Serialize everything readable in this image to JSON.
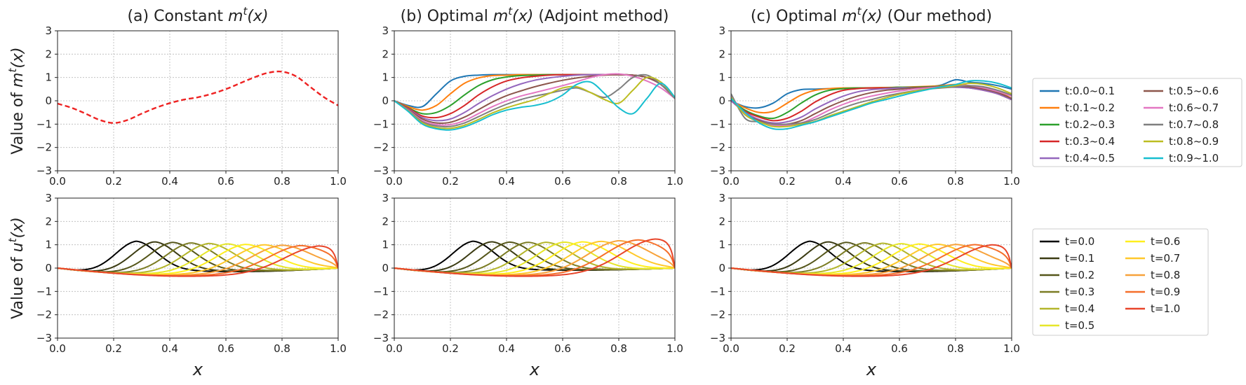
{
  "figure": {
    "titles": [
      "(a) Constant ",
      "(b) Optimal ",
      "(c) Optimal "
    ],
    "title_math": "m",
    "title_sup": "t",
    "title_arg": "(x)",
    "title_suffix": [
      "",
      " (Adjoint method)",
      " (Our method)"
    ],
    "ylabel_top_prefix": "Value of ",
    "ylabel_top_var": "m",
    "ylabel_bottom_prefix": "Value of ",
    "ylabel_bottom_var": "u",
    "ylabel_sup": "t",
    "ylabel_arg": "(x)",
    "xlabel": "x",
    "xticks": [
      "0.0",
      "0.2",
      "0.4",
      "0.6",
      "0.8",
      "1.0"
    ],
    "yticks": [
      "3",
      "2",
      "1",
      "0",
      "−1",
      "−2",
      "−3"
    ]
  },
  "chart_data": [
    {
      "id": "a-top",
      "type": "line",
      "title": "(a) Constant m^t(x)",
      "xlabel": "",
      "ylabel": "Value of m^t(x)",
      "xlim": [
        0,
        1
      ],
      "ylim": [
        -3,
        3
      ],
      "grid": true,
      "series": [
        {
          "name": "m(x)",
          "color": "#ee2222",
          "dashed": true,
          "x": [
            0,
            0.05,
            0.1,
            0.15,
            0.2,
            0.25,
            0.3,
            0.35,
            0.4,
            0.45,
            0.5,
            0.55,
            0.6,
            0.65,
            0.7,
            0.75,
            0.8,
            0.85,
            0.9,
            0.95,
            1.0
          ],
          "y": [
            -0.12,
            -0.3,
            -0.55,
            -0.82,
            -0.95,
            -0.82,
            -0.55,
            -0.3,
            -0.1,
            0.05,
            0.15,
            0.3,
            0.5,
            0.75,
            1.0,
            1.2,
            1.25,
            1.05,
            0.6,
            0.15,
            -0.2
          ]
        }
      ]
    },
    {
      "id": "b-top",
      "type": "line",
      "title": "(b) Optimal m^t(x) (Adjoint method)",
      "xlabel": "",
      "ylabel": "",
      "xlim": [
        0,
        1
      ],
      "ylim": [
        -3,
        3
      ],
      "grid": true,
      "x": [
        0,
        0.05,
        0.1,
        0.15,
        0.2,
        0.25,
        0.3,
        0.35,
        0.4,
        0.45,
        0.5,
        0.55,
        0.6,
        0.65,
        0.7,
        0.75,
        0.8,
        0.85,
        0.9,
        0.95,
        1.0
      ],
      "series": [
        {
          "name": "t:0.0~0.1",
          "color": "#1f77b4",
          "y": [
            0,
            -0.2,
            -0.25,
            0.3,
            0.85,
            1.05,
            1.1,
            1.12,
            1.12,
            1.12,
            1.12,
            1.12,
            1.12,
            1.12,
            1.12,
            1.12,
            1.12,
            1.1,
            1.0,
            0.7,
            0.1
          ]
        },
        {
          "name": "t:0.1~0.2",
          "color": "#ff7f0e",
          "y": [
            0,
            -0.25,
            -0.4,
            -0.2,
            0.3,
            0.75,
            0.98,
            1.08,
            1.1,
            1.12,
            1.12,
            1.12,
            1.12,
            1.12,
            1.12,
            1.12,
            1.12,
            1.1,
            1.0,
            0.7,
            0.1
          ]
        },
        {
          "name": "t:0.2~0.3",
          "color": "#2ca02c",
          "y": [
            0,
            -0.3,
            -0.55,
            -0.5,
            -0.2,
            0.25,
            0.65,
            0.9,
            1.02,
            1.08,
            1.1,
            1.12,
            1.12,
            1.12,
            1.12,
            1.12,
            1.12,
            1.1,
            1.0,
            0.7,
            0.1
          ]
        },
        {
          "name": "t:0.3~0.4",
          "color": "#d62728",
          "y": [
            0,
            -0.32,
            -0.65,
            -0.72,
            -0.55,
            -0.2,
            0.25,
            0.6,
            0.85,
            0.98,
            1.05,
            1.1,
            1.12,
            1.12,
            1.12,
            1.12,
            1.12,
            1.1,
            1.0,
            0.7,
            0.1
          ]
        },
        {
          "name": "t:0.4~0.5",
          "color": "#9467bd",
          "y": [
            0,
            -0.35,
            -0.72,
            -0.85,
            -0.78,
            -0.5,
            -0.12,
            0.22,
            0.5,
            0.72,
            0.88,
            0.98,
            1.05,
            1.1,
            1.12,
            1.12,
            1.12,
            1.1,
            1.0,
            0.7,
            0.1
          ]
        },
        {
          "name": "t:0.5~0.6",
          "color": "#8c564b",
          "y": [
            0,
            -0.37,
            -0.78,
            -0.95,
            -0.92,
            -0.7,
            -0.38,
            -0.05,
            0.22,
            0.42,
            0.6,
            0.75,
            0.88,
            0.98,
            1.05,
            1.1,
            1.12,
            1.1,
            1.0,
            0.7,
            0.1
          ]
        },
        {
          "name": "t:0.6~0.7",
          "color": "#e377c2",
          "y": [
            0,
            -0.4,
            -0.85,
            -1.02,
            -1.02,
            -0.85,
            -0.55,
            -0.25,
            0.0,
            0.2,
            0.35,
            0.5,
            0.65,
            0.82,
            1.0,
            1.12,
            1.15,
            1.05,
            0.85,
            0.55,
            0.1
          ]
        },
        {
          "name": "t:0.7~0.8",
          "color": "#7f7f7f",
          "y": [
            0,
            -0.42,
            -0.9,
            -1.08,
            -1.1,
            -0.95,
            -0.68,
            -0.4,
            -0.15,
            0.05,
            0.2,
            0.32,
            0.45,
            0.55,
            0.35,
            0.15,
            0.5,
            1.0,
            1.1,
            0.7,
            0.1
          ]
        },
        {
          "name": "t:0.8~0.9",
          "color": "#bcbd22",
          "y": [
            0,
            -0.44,
            -0.95,
            -1.15,
            -1.18,
            -1.05,
            -0.8,
            -0.52,
            -0.3,
            -0.12,
            0.05,
            0.3,
            0.55,
            0.6,
            0.35,
            0.05,
            -0.1,
            0.45,
            1.0,
            0.8,
            0.15
          ]
        },
        {
          "name": "t:0.9~1.0",
          "color": "#17becf",
          "y": [
            0,
            -0.46,
            -1.0,
            -1.2,
            -1.25,
            -1.12,
            -0.88,
            -0.6,
            -0.4,
            -0.28,
            -0.2,
            -0.05,
            0.25,
            0.7,
            0.8,
            0.3,
            -0.3,
            -0.55,
            0.1,
            0.75,
            0.15
          ]
        }
      ]
    },
    {
      "id": "c-top",
      "type": "line",
      "title": "(c) Optimal m^t(x) (Our method)",
      "xlabel": "",
      "ylabel": "",
      "xlim": [
        0,
        1
      ],
      "ylim": [
        -3,
        3
      ],
      "grid": true,
      "x": [
        0,
        0.05,
        0.1,
        0.15,
        0.2,
        0.25,
        0.3,
        0.35,
        0.4,
        0.45,
        0.5,
        0.55,
        0.6,
        0.65,
        0.7,
        0.75,
        0.8,
        0.85,
        0.9,
        0.95,
        1.0
      ],
      "series": [
        {
          "name": "t:0.0~0.1",
          "color": "#1f77b4",
          "y": [
            0,
            -0.25,
            -0.3,
            -0.1,
            0.3,
            0.48,
            0.5,
            0.52,
            0.53,
            0.55,
            0.55,
            0.55,
            0.58,
            0.58,
            0.6,
            0.68,
            0.9,
            0.8,
            0.75,
            0.65,
            0.5
          ]
        },
        {
          "name": "t:0.1~0.2",
          "color": "#ff7f0e",
          "y": [
            0,
            -0.3,
            -0.5,
            -0.45,
            -0.1,
            0.25,
            0.45,
            0.52,
            0.55,
            0.55,
            0.56,
            0.57,
            0.58,
            0.6,
            0.62,
            0.65,
            0.7,
            0.65,
            0.55,
            0.4,
            0.1
          ]
        },
        {
          "name": "t:0.2~0.3",
          "color": "#2ca02c",
          "y": [
            0,
            -0.4,
            -0.65,
            -0.75,
            -0.5,
            -0.1,
            0.25,
            0.45,
            0.52,
            0.55,
            0.55,
            0.56,
            0.58,
            0.58,
            0.6,
            0.62,
            0.65,
            0.6,
            0.5,
            0.3,
            0.05
          ]
        },
        {
          "name": "t:0.3~0.4",
          "color": "#d62728",
          "y": [
            0,
            -0.45,
            -0.7,
            -0.85,
            -0.75,
            -0.45,
            -0.05,
            0.25,
            0.45,
            0.52,
            0.55,
            0.55,
            0.55,
            0.56,
            0.58,
            0.6,
            0.6,
            0.55,
            0.45,
            0.3,
            0.05
          ]
        },
        {
          "name": "t:0.4~0.5",
          "color": "#9467bd",
          "y": [
            0,
            -0.5,
            -0.8,
            -0.95,
            -0.9,
            -0.7,
            -0.35,
            -0.05,
            0.2,
            0.38,
            0.48,
            0.52,
            0.55,
            0.56,
            0.57,
            0.58,
            0.58,
            0.55,
            0.45,
            0.3,
            0.05
          ]
        },
        {
          "name": "t:0.5~0.6",
          "color": "#8c564b",
          "y": [
            0.1,
            -0.55,
            -0.85,
            -1.0,
            -1.0,
            -0.85,
            -0.55,
            -0.25,
            0.0,
            0.2,
            0.35,
            0.45,
            0.5,
            0.55,
            0.58,
            0.6,
            0.62,
            0.6,
            0.5,
            0.35,
            0.1
          ]
        },
        {
          "name": "t:0.6~0.7",
          "color": "#e377c2",
          "y": [
            0.2,
            -0.55,
            -0.9,
            -1.05,
            -1.05,
            -0.95,
            -0.7,
            -0.4,
            -0.15,
            0.05,
            0.2,
            0.32,
            0.42,
            0.5,
            0.55,
            0.6,
            0.65,
            0.65,
            0.55,
            0.4,
            0.2
          ]
        },
        {
          "name": "t:0.7~0.8",
          "color": "#7f7f7f",
          "y": [
            0.3,
            -0.75,
            -0.9,
            -1.0,
            -1.0,
            -0.95,
            -0.8,
            -0.55,
            -0.3,
            -0.1,
            0.05,
            0.2,
            0.32,
            0.42,
            0.5,
            0.55,
            0.6,
            0.65,
            0.6,
            0.45,
            0.25
          ]
        },
        {
          "name": "t:0.8~0.9",
          "color": "#bcbd22",
          "y": [
            0.15,
            -0.6,
            -0.9,
            -1.1,
            -1.1,
            -1.0,
            -0.88,
            -0.65,
            -0.45,
            -0.25,
            -0.05,
            0.12,
            0.28,
            0.4,
            0.5,
            0.58,
            0.65,
            0.75,
            0.7,
            0.55,
            0.3
          ]
        },
        {
          "name": "t:0.9~1.0",
          "color": "#17becf",
          "y": [
            0.1,
            -0.5,
            -0.95,
            -1.2,
            -1.2,
            -1.05,
            -0.9,
            -0.7,
            -0.5,
            -0.3,
            -0.1,
            0.05,
            0.2,
            0.35,
            0.48,
            0.6,
            0.7,
            0.85,
            0.85,
            0.75,
            0.55
          ]
        }
      ]
    },
    {
      "id": "a-bottom",
      "type": "line",
      "title": "",
      "xlabel": "x",
      "ylabel": "Value of u^t(x)",
      "xlim": [
        0,
        1
      ],
      "ylim": [
        -3,
        3
      ],
      "grid": true,
      "model": {
        "peak0": 1.15,
        "center0": 0.28,
        "width": 0.075,
        "endpeak": 0.95,
        "tail": "constant"
      },
      "series": [
        {
          "name": "t=0.0",
          "color": "#000000",
          "t": 0.0
        },
        {
          "name": "t=0.1",
          "color": "#3b3b12",
          "t": 0.1
        },
        {
          "name": "t=0.2",
          "color": "#55561a",
          "t": 0.2
        },
        {
          "name": "t=0.3",
          "color": "#7b7c23",
          "t": 0.3
        },
        {
          "name": "t=0.4",
          "color": "#b3b52a",
          "t": 0.4
        },
        {
          "name": "t=0.5",
          "color": "#e6e62a",
          "t": 0.5
        },
        {
          "name": "t=0.6",
          "color": "#ffef1e",
          "t": 0.6
        },
        {
          "name": "t=0.7",
          "color": "#ffc82a",
          "t": 0.7
        },
        {
          "name": "t=0.8",
          "color": "#f7a23a",
          "t": 0.8
        },
        {
          "name": "t=0.9",
          "color": "#f56f2a",
          "t": 0.9
        },
        {
          "name": "t=1.0",
          "color": "#e8452a",
          "t": 1.0
        }
      ]
    },
    {
      "id": "b-bottom",
      "type": "line",
      "title": "",
      "xlabel": "x",
      "ylabel": "",
      "xlim": [
        0,
        1
      ],
      "ylim": [
        -3,
        3
      ],
      "grid": true,
      "model": {
        "peak0": 1.15,
        "center0": 0.28,
        "width": 0.075,
        "endpeak": 1.25,
        "tail": "adjoint"
      },
      "series": [
        {
          "name": "t=0.0",
          "color": "#000000",
          "t": 0.0
        },
        {
          "name": "t=0.1",
          "color": "#3b3b12",
          "t": 0.1
        },
        {
          "name": "t=0.2",
          "color": "#55561a",
          "t": 0.2
        },
        {
          "name": "t=0.3",
          "color": "#7b7c23",
          "t": 0.3
        },
        {
          "name": "t=0.4",
          "color": "#b3b52a",
          "t": 0.4
        },
        {
          "name": "t=0.5",
          "color": "#e6e62a",
          "t": 0.5
        },
        {
          "name": "t=0.6",
          "color": "#ffef1e",
          "t": 0.6
        },
        {
          "name": "t=0.7",
          "color": "#ffc82a",
          "t": 0.7
        },
        {
          "name": "t=0.8",
          "color": "#f7a23a",
          "t": 0.8
        },
        {
          "name": "t=0.9",
          "color": "#f56f2a",
          "t": 0.9
        },
        {
          "name": "t=1.0",
          "color": "#e8452a",
          "t": 1.0
        }
      ]
    },
    {
      "id": "c-bottom",
      "type": "line",
      "title": "",
      "xlabel": "x",
      "ylabel": "",
      "xlim": [
        0,
        1
      ],
      "ylim": [
        -3,
        3
      ],
      "grid": true,
      "model": {
        "peak0": 1.15,
        "center0": 0.28,
        "width": 0.075,
        "endpeak": 1.0,
        "tail": "ours"
      },
      "series": [
        {
          "name": "t=0.0",
          "color": "#000000",
          "t": 0.0
        },
        {
          "name": "t=0.1",
          "color": "#3b3b12",
          "t": 0.1
        },
        {
          "name": "t=0.2",
          "color": "#55561a",
          "t": 0.2
        },
        {
          "name": "t=0.3",
          "color": "#7b7c23",
          "t": 0.3
        },
        {
          "name": "t=0.4",
          "color": "#b3b52a",
          "t": 0.4
        },
        {
          "name": "t=0.5",
          "color": "#e6e62a",
          "t": 0.5
        },
        {
          "name": "t=0.6",
          "color": "#ffef1e",
          "t": 0.6
        },
        {
          "name": "t=0.7",
          "color": "#ffc82a",
          "t": 0.7
        },
        {
          "name": "t=0.8",
          "color": "#f7a23a",
          "t": 0.8
        },
        {
          "name": "t=0.9",
          "color": "#f56f2a",
          "t": 0.9
        },
        {
          "name": "t=1.0",
          "color": "#e8452a",
          "t": 1.0
        }
      ]
    }
  ],
  "legends": {
    "top": [
      "t:0.0~0.1",
      "t:0.1~0.2",
      "t:0.2~0.3",
      "t:0.3~0.4",
      "t:0.4~0.5",
      "t:0.5~0.6",
      "t:0.6~0.7",
      "t:0.7~0.8",
      "t:0.8~0.9",
      "t:0.9~1.0"
    ],
    "bottom": [
      "t=0.0",
      "t=0.1",
      "t=0.2",
      "t=0.3",
      "t=0.4",
      "t=0.5",
      "t=0.6",
      "t=0.7",
      "t=0.8",
      "t=0.9",
      "t=1.0"
    ]
  }
}
